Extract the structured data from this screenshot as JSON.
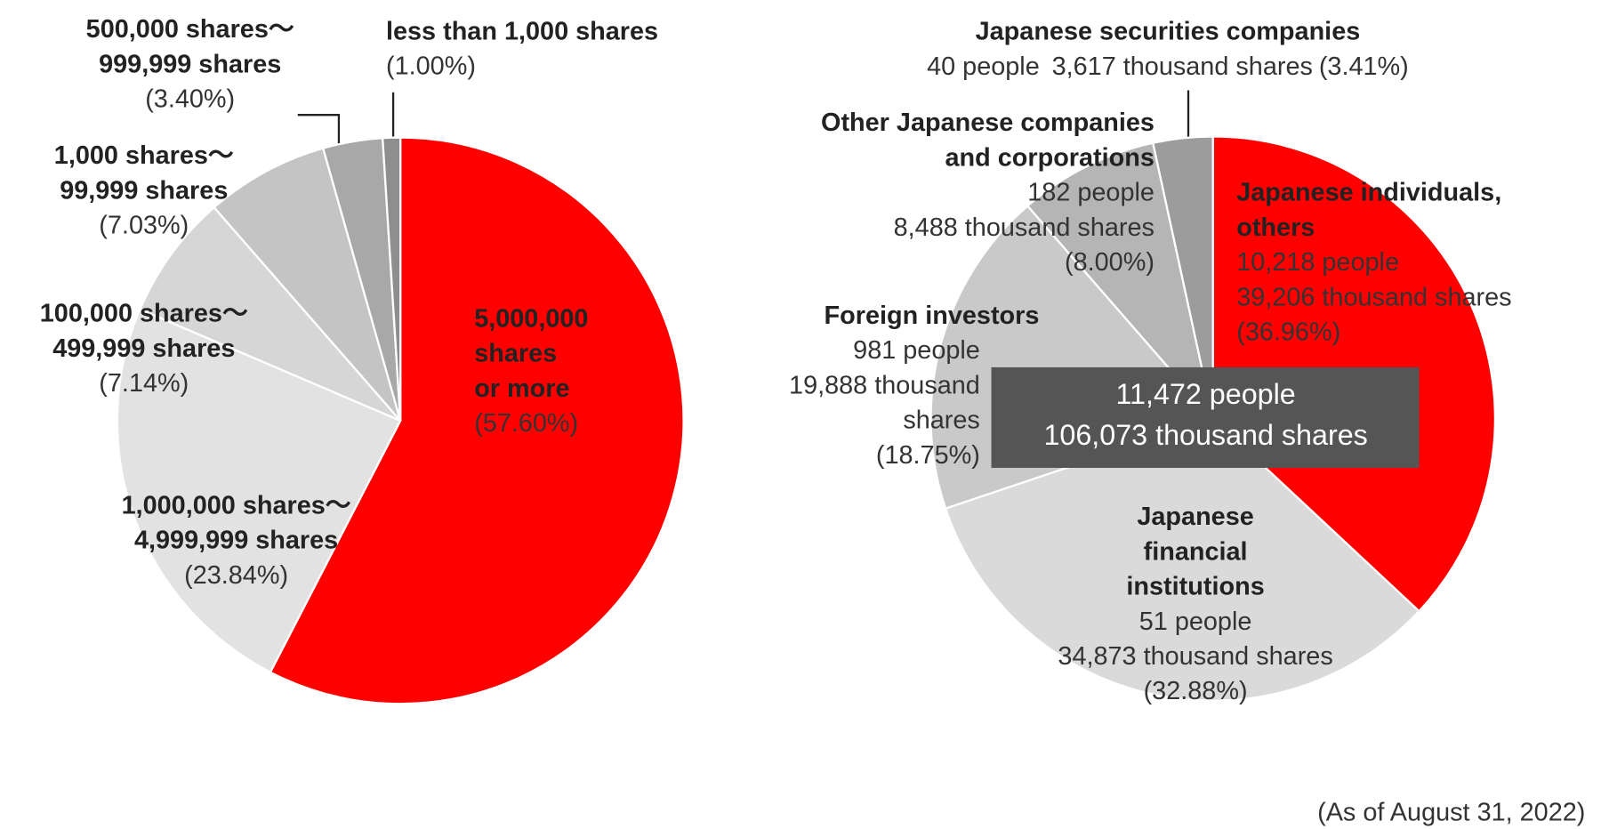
{
  "chart_data": [
    {
      "type": "pie",
      "categories": [
        [
          "5,000,000",
          "shares",
          "or more"
        ],
        [
          "1,000,000 shares～",
          "4,999,999 shares"
        ],
        [
          "100,000 shares～",
          "499,999 shares"
        ],
        [
          "1,000 shares～",
          "99,999 shares"
        ],
        [
          "500,000 shares～",
          "999,999 shares"
        ],
        [
          "less than 1,000 shares"
        ]
      ],
      "values": [
        57.6,
        23.84,
        7.14,
        7.03,
        3.4,
        1.0
      ],
      "value_labels": [
        "(57.60%)",
        "(23.84%)",
        "(7.14%)",
        "(7.03%)",
        "(3.40%)",
        "(1.00%)"
      ],
      "colors": [
        "#ff0000",
        "#e2e2e2",
        "#d6d6d6",
        "#c4c4c4",
        "#a8a8a8",
        "#8e8e8e"
      ]
    },
    {
      "type": "pie",
      "categories": [
        [
          "Japanese individuals,",
          "others"
        ],
        [
          "Japanese",
          "financial",
          "institutions"
        ],
        [
          "Foreign investors"
        ],
        [
          "Other Japanese companies",
          "and corporations"
        ],
        [
          "Japanese securities companies"
        ]
      ],
      "people_labels": [
        "10,218 people",
        "51 people",
        "981 people",
        "182 people",
        "40 people"
      ],
      "shares_labels": [
        [
          "39,206 thousand shares"
        ],
        [
          "34,873 thousand shares"
        ],
        [
          "19,888 thousand",
          "shares"
        ],
        [
          "8,488 thousand shares"
        ],
        [
          "3,617 thousand shares"
        ]
      ],
      "values": [
        36.96,
        32.88,
        18.75,
        8.0,
        3.41
      ],
      "value_labels": [
        "(36.96%)",
        "(32.88%)",
        "(18.75%)",
        "(8.00%)",
        "(3.41%)"
      ],
      "colors": [
        "#ff0000",
        "#dadada",
        "#c9c9c9",
        "#b5b5b5",
        "#9c9c9c"
      ],
      "total_labels": [
        "11,472 people",
        "106,073 thousand shares"
      ]
    }
  ],
  "note": "(As of August 31, 2022)"
}
